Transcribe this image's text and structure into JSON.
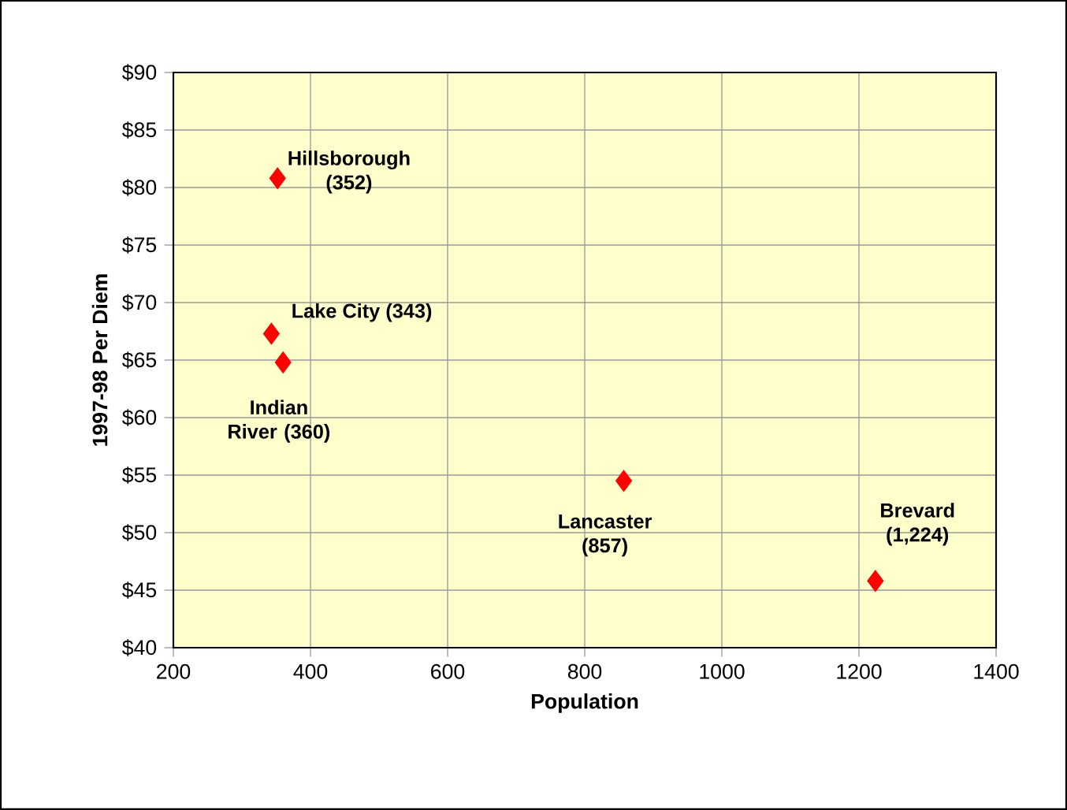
{
  "chart_data": {
    "type": "scatter",
    "xlabel": "Population",
    "ylabel": "1997-98 Per Diem",
    "x": [
      352,
      343,
      360,
      857,
      1224
    ],
    "values": [
      80.8,
      67.3,
      64.8,
      54.5,
      45.8
    ],
    "color": "#ff0000",
    "marker": "diamond",
    "grid": true,
    "xlim": [
      200,
      1400
    ],
    "xticks": [
      200,
      400,
      600,
      800,
      1000,
      1200,
      1400
    ],
    "ylim": [
      40,
      90
    ],
    "yticks": [
      {
        "value": 40,
        "label": "$40"
      },
      {
        "value": 45,
        "label": "$45"
      },
      {
        "value": 50,
        "label": "$50"
      },
      {
        "value": 55,
        "label": "$55"
      },
      {
        "value": 60,
        "label": "$60"
      },
      {
        "value": 65,
        "label": "$65"
      },
      {
        "value": 70,
        "label": "$70"
      },
      {
        "value": 75,
        "label": "$75"
      },
      {
        "value": 80,
        "label": "$80"
      },
      {
        "value": 85,
        "label": "$85"
      },
      {
        "value": 90,
        "label": "$90"
      }
    ],
    "annotations": [
      {
        "text": "Hillsborough (352)",
        "x": 352,
        "y": 80.8
      },
      {
        "text": "Lake City (343)",
        "x": 343,
        "y": 67.3
      },
      {
        "text": "Indian River (360)",
        "x": 360,
        "y": 64.8
      },
      {
        "text": "Lancaster (857)",
        "x": 857,
        "y": 54.5
      },
      {
        "text": "Brevard (1,224)",
        "x": 1224,
        "y": 45.8
      }
    ]
  }
}
